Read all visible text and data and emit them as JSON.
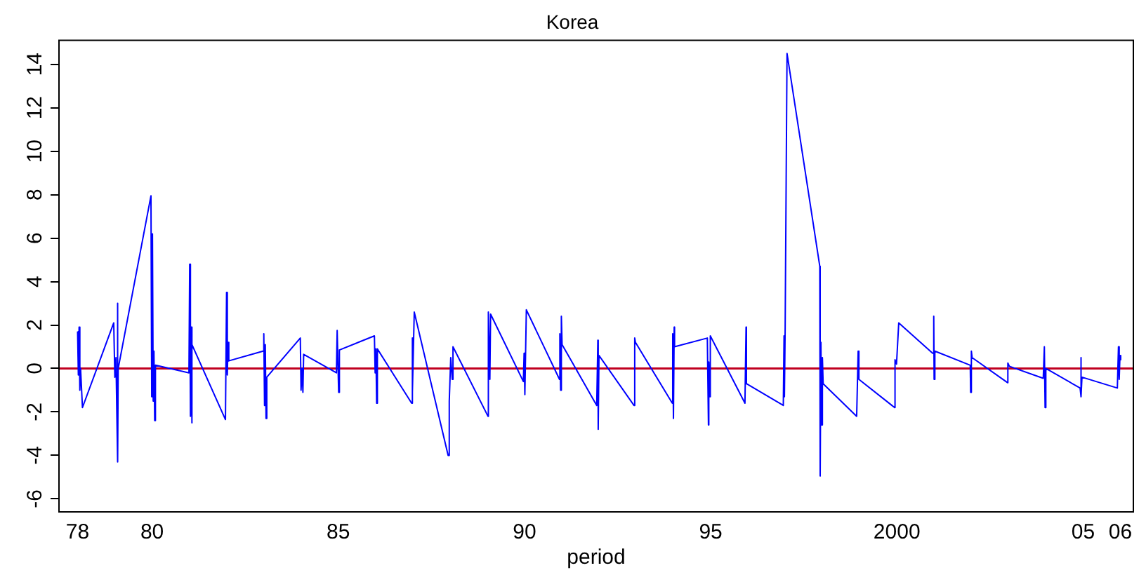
{
  "chart_data": {
    "type": "line",
    "title": "Korea",
    "xlabel": "period",
    "x": [
      1978.0,
      1978.02,
      1978.04,
      1978.06,
      1978.08,
      1978.13,
      1978.97,
      1979.0,
      1979.03,
      1979.05,
      1979.07,
      1979.08,
      1979.09,
      1979.97,
      1979.99,
      1980.01,
      1980.03,
      1980.05,
      1980.07,
      1980.09,
      1980.99,
      1981.01,
      1981.03,
      1981.05,
      1981.06,
      1981.08,
      1981.97,
      1982.0,
      1982.02,
      1982.04,
      1982.06,
      1982.98,
      1983.0,
      1983.02,
      1983.04,
      1983.06,
      1983.08,
      1983.98,
      1984.0,
      1984.03,
      1984.05,
      1984.07,
      1984.95,
      1984.97,
      1985.01,
      1985.03,
      1985.97,
      1985.99,
      1986.01,
      1986.03,
      1986.05,
      1986.97,
      1986.98,
      1987.0,
      1987.04,
      1987.95,
      1987.98,
      1988.02,
      1988.06,
      1988.08,
      1989.02,
      1989.03,
      1989.07,
      1989.09,
      1989.97,
      1989.99,
      1990.01,
      1990.05,
      1990.94,
      1990.95,
      1990.97,
      1990.99,
      1991.01,
      1991.94,
      1991.97,
      1991.98,
      1992.0,
      1992.94,
      1992.96,
      1992.98,
      1993.97,
      1993.98,
      1994.0,
      1994.02,
      1994.03,
      1994.91,
      1994.94,
      1994.95,
      1994.97,
      1994.99,
      1995.92,
      1995.95,
      1995.96,
      1996.95,
      1996.97,
      1996.98,
      1997.0,
      1997.05,
      1997.93,
      1997.94,
      1997.96,
      1997.98,
      1998.0,
      1998.02,
      1998.92,
      1998.96,
      1998.98,
      1999.94,
      1999.95,
      1999.99,
      2000.05,
      2000.96,
      2000.99,
      2001.0,
      2001.02,
      2001.97,
      2001.98,
      2002.0,
      2002.02,
      2002.97,
      2002.98,
      2003.02,
      2003.93,
      2003.96,
      2003.98,
      2004.0,
      2004.92,
      2004.94,
      2004.95,
      2004.97,
      2005.92,
      2005.95,
      2005.97,
      2005.99,
      2006.01
    ],
    "values": [
      1.7,
      -0.3,
      1.9,
      -1.0,
      0.0,
      -1.8,
      2.1,
      -0.4,
      0.5,
      -1.7,
      3.0,
      -4.3,
      0.0,
      7.95,
      -1.3,
      6.2,
      -1.5,
      0.8,
      -2.4,
      0.15,
      -0.2,
      4.8,
      -2.2,
      1.9,
      -2.5,
      1.1,
      -2.35,
      3.5,
      -0.3,
      1.2,
      0.35,
      0.8,
      1.6,
      -1.7,
      1.1,
      -2.3,
      -0.4,
      1.4,
      -1.0,
      0.0,
      -1.1,
      0.65,
      -0.2,
      1.75,
      -1.1,
      0.85,
      1.5,
      -0.2,
      0.9,
      -1.6,
      0.9,
      -1.6,
      1.4,
      -1.1,
      2.6,
      -4.0,
      -1.5,
      0.5,
      -0.5,
      1.0,
      -2.2,
      2.6,
      -0.5,
      2.5,
      -0.6,
      0.7,
      -1.2,
      2.7,
      -0.5,
      1.6,
      -1.0,
      2.4,
      1.1,
      -1.7,
      1.3,
      -2.8,
      0.6,
      -1.7,
      1.4,
      1.2,
      -1.6,
      1.6,
      -2.3,
      1.9,
      1.0,
      1.4,
      -2.6,
      0.3,
      -1.3,
      1.5,
      -1.6,
      1.9,
      -0.7,
      -1.7,
      1.5,
      -1.3,
      1.9,
      14.5,
      4.7,
      -4.95,
      1.2,
      -2.6,
      0.5,
      -0.7,
      -2.2,
      0.8,
      -0.5,
      -1.8,
      0.4,
      0.2,
      2.1,
      0.7,
      2.4,
      -0.5,
      0.8,
      0.15,
      -1.1,
      0.8,
      0.5,
      -0.65,
      0.25,
      0.1,
      -0.45,
      1.0,
      -1.8,
      0.0,
      -0.9,
      0.5,
      -1.3,
      -0.4,
      -0.9,
      1.0,
      -0.5,
      0.6,
      0.4
    ],
    "color": "#0000ff",
    "xlim": [
      1977.5,
      2006.35
    ],
    "xticks": [
      {
        "value": 1978,
        "label": "78"
      },
      {
        "value": 1980,
        "label": "80"
      },
      {
        "value": 1985,
        "label": "85"
      },
      {
        "value": 1990,
        "label": "90"
      },
      {
        "value": 1995,
        "label": "95"
      },
      2000,
      {
        "value": 2005,
        "label": "05"
      },
      {
        "value": 2006,
        "label": "06"
      }
    ],
    "ylim": [
      -6.6,
      15.1
    ],
    "yticks": [
      -6,
      -4,
      -2,
      0,
      2,
      4,
      6,
      8,
      10,
      12,
      14
    ],
    "ref_lines": [
      {
        "axis": "y",
        "value": 0,
        "color": "#c00020"
      }
    ],
    "grid": false,
    "legend": false,
    "marker": "none",
    "line_style": "solid"
  }
}
